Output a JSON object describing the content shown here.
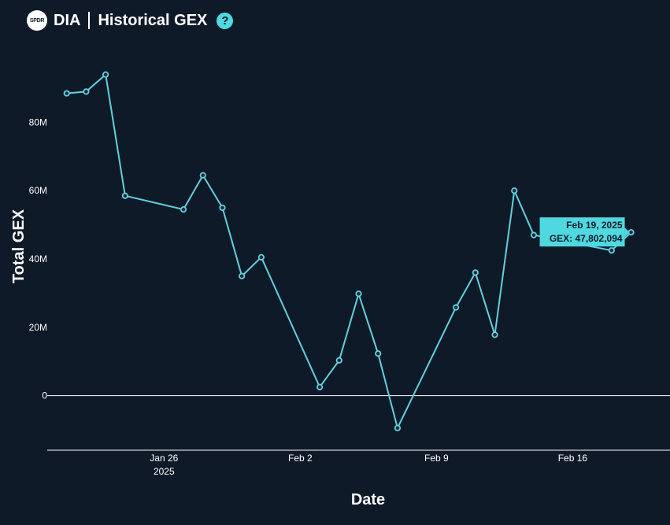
{
  "header": {
    "logo_text": "SPDR",
    "ticker": "DIA",
    "title": "Historical GEX",
    "help_symbol": "?"
  },
  "colors": {
    "background": "#0f1a28",
    "line": "#62d0dd",
    "tooltip_bg": "#4fd8e0",
    "axis": "#ffffff"
  },
  "chart_data": {
    "type": "line",
    "xlabel": "Date",
    "ylabel": "Total GEX",
    "x_ticks": [
      {
        "date": "2025-01-26",
        "label": "Jan 26",
        "sublabel": "2025"
      },
      {
        "date": "2025-02-02",
        "label": "Feb 2",
        "sublabel": ""
      },
      {
        "date": "2025-02-09",
        "label": "Feb 9",
        "sublabel": ""
      },
      {
        "date": "2025-02-16",
        "label": "Feb 16",
        "sublabel": ""
      }
    ],
    "y_ticks": [
      {
        "value": 0,
        "label": "0"
      },
      {
        "value": 20000000,
        "label": "20M"
      },
      {
        "value": 40000000,
        "label": "40M"
      },
      {
        "value": 60000000,
        "label": "60M"
      },
      {
        "value": 80000000,
        "label": "80M"
      }
    ],
    "xlim": [
      "2025-01-20",
      "2025-02-21"
    ],
    "ylim": [
      -16000000,
      102000000
    ],
    "grid": false,
    "zero_line": true,
    "series": [
      {
        "points": [
          {
            "x": "2025-01-21",
            "y": 88500000
          },
          {
            "x": "2025-01-22",
            "y": 89000000
          },
          {
            "x": "2025-01-23",
            "y": 94000000
          },
          {
            "x": "2025-01-24",
            "y": 58500000
          },
          {
            "x": "2025-01-27",
            "y": 54500000
          },
          {
            "x": "2025-01-28",
            "y": 64500000
          },
          {
            "x": "2025-01-29",
            "y": 55000000
          },
          {
            "x": "2025-01-30",
            "y": 35000000
          },
          {
            "x": "2025-01-31",
            "y": 40500000
          },
          {
            "x": "2025-02-03",
            "y": 2500000
          },
          {
            "x": "2025-02-04",
            "y": 10300000
          },
          {
            "x": "2025-02-05",
            "y": 29800000
          },
          {
            "x": "2025-02-06",
            "y": 12300000
          },
          {
            "x": "2025-02-07",
            "y": -9500000
          },
          {
            "x": "2025-02-10",
            "y": 25800000
          },
          {
            "x": "2025-02-11",
            "y": 36000000
          },
          {
            "x": "2025-02-12",
            "y": 17800000
          },
          {
            "x": "2025-02-13",
            "y": 60000000
          },
          {
            "x": "2025-02-14",
            "y": 47000000
          },
          {
            "x": "2025-02-18",
            "y": 42500000
          },
          {
            "x": "2025-02-19",
            "y": 47802094
          }
        ]
      }
    ],
    "tooltip": {
      "date_label": "Feb 19, 2025",
      "value_label": "GEX: 47,802,094",
      "x": "2025-02-19",
      "y": 47802094
    }
  }
}
